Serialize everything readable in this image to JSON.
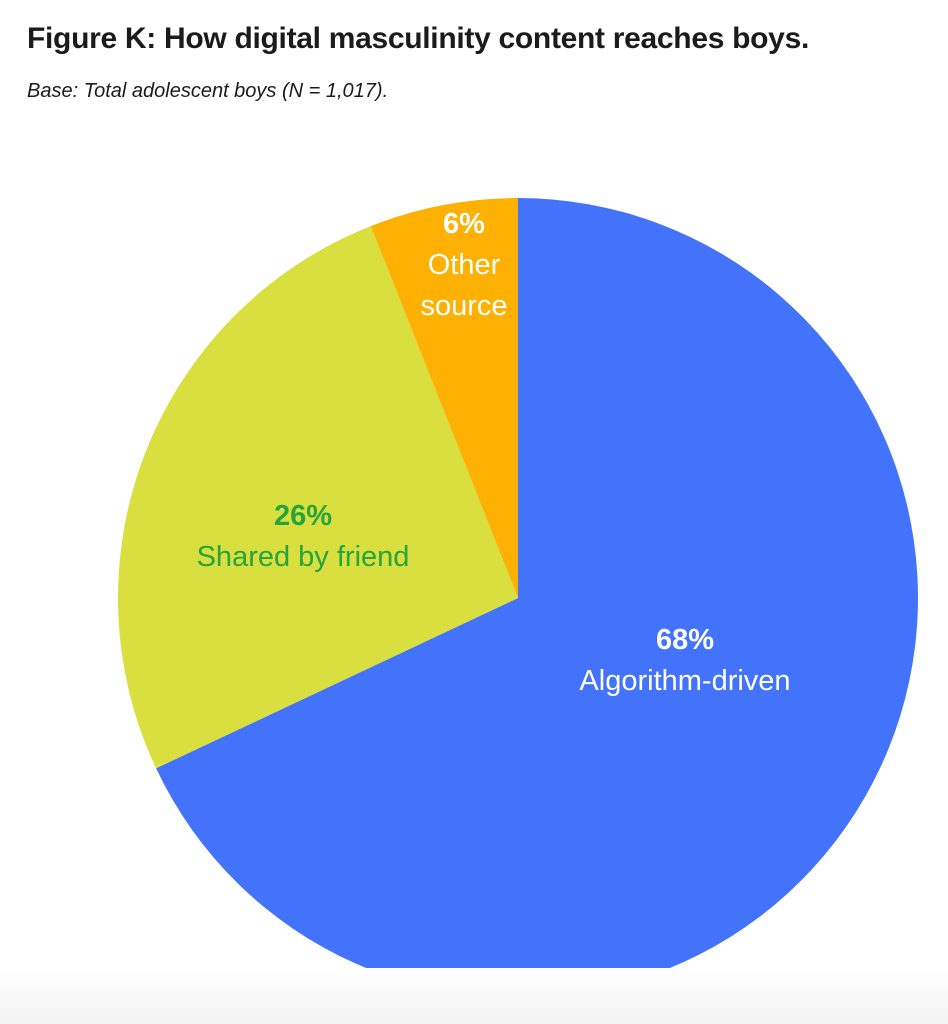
{
  "header": {
    "title": "Figure K: How digital masculinity content reaches boys.",
    "subtitle": "Base: Total adolescent boys (N = 1,017)."
  },
  "chart_data": {
    "type": "pie",
    "title": "How digital masculinity content reaches boys",
    "base_note": "Total adolescent boys (N = 1,017)",
    "start_angle_deg": 0,
    "direction": "clockwise",
    "legend_position": "none",
    "slices": [
      {
        "label": "Algorithm-driven",
        "pct_label": "68%",
        "value": 68,
        "color": "#4373FA",
        "text_color": "#FFFFFF"
      },
      {
        "label": "Shared by friend",
        "pct_label": "26%",
        "value": 26,
        "color": "#D8DF3F",
        "text_color": "#27A43C"
      },
      {
        "label": "Other source",
        "pct_label": "6%",
        "value": 6,
        "color": "#FFB103",
        "text_color": "#FFFFFF"
      }
    ]
  }
}
